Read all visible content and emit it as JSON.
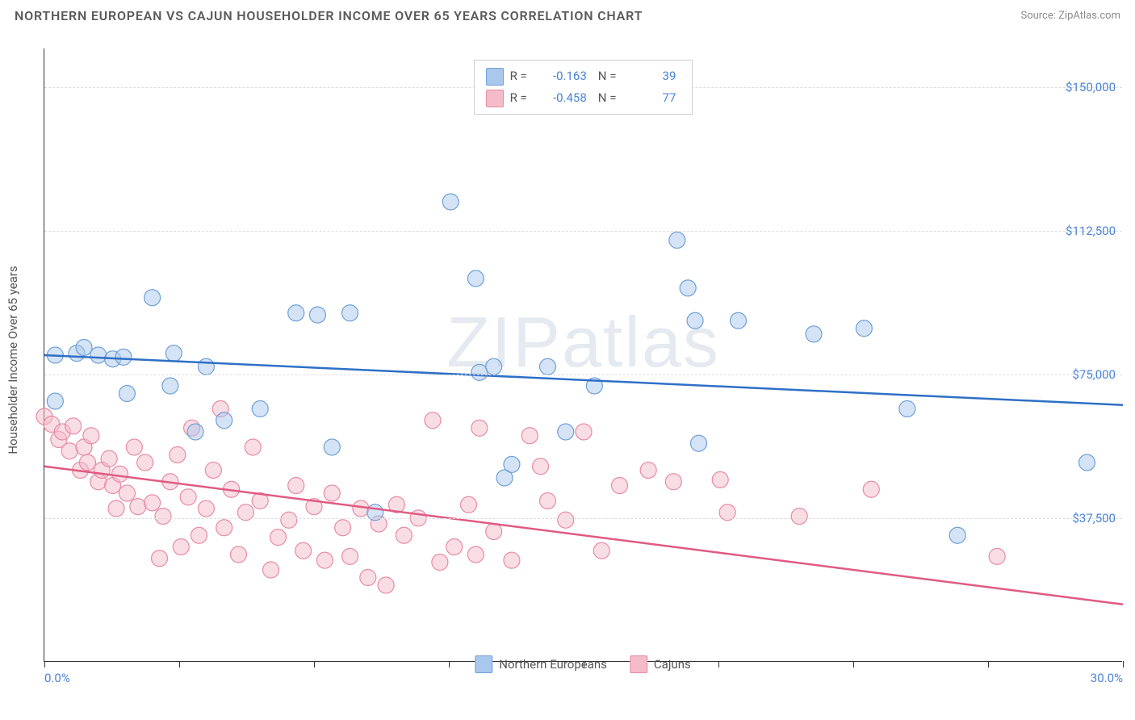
{
  "header": {
    "title": "NORTHERN EUROPEAN VS CAJUN HOUSEHOLDER INCOME OVER 65 YEARS CORRELATION CHART",
    "source": "Source: ZipAtlas.com"
  },
  "watermark": "ZIPatlas",
  "chart": {
    "type": "scatter",
    "y_axis_label": "Householder Income Over 65 years",
    "xlim": [
      0,
      30
    ],
    "ylim": [
      0,
      160000
    ],
    "x_ticks": [
      0,
      3.75,
      7.5,
      11.25,
      15,
      18.75,
      22.5,
      26.25,
      30
    ],
    "x_tick_labels": {
      "0": "0.0%",
      "30": "30.0%"
    },
    "y_ticks": [
      37500,
      75000,
      112500,
      150000
    ],
    "y_tick_labels": [
      "$37,500",
      "$75,000",
      "$112,500",
      "$150,000"
    ],
    "background_color": "#ffffff",
    "grid_color": "#dddddd",
    "axis_color": "#333333",
    "label_color": "#4a84d6",
    "marker_radius": 10,
    "marker_opacity": 0.5,
    "line_width": 2.5,
    "series": [
      {
        "name": "Northern Europeans",
        "color_fill": "#a9c8ec",
        "color_stroke": "#6fa0d9",
        "line_color": "#2f6fc6",
        "R": "-0.163",
        "N": "39",
        "regression": {
          "x1": 0,
          "y1": 80000,
          "x2": 30,
          "y2": 67000
        },
        "points": [
          [
            0.3,
            80000
          ],
          [
            0.3,
            68000
          ],
          [
            0.9,
            80500
          ],
          [
            1.1,
            82000
          ],
          [
            1.5,
            80000
          ],
          [
            1.9,
            79000
          ],
          [
            2.2,
            79500
          ],
          [
            2.3,
            70000
          ],
          [
            3.0,
            95000
          ],
          [
            3.5,
            72000
          ],
          [
            3.6,
            80500
          ],
          [
            4.2,
            60000
          ],
          [
            4.5,
            77000
          ],
          [
            5.0,
            63000
          ],
          [
            6.0,
            66000
          ],
          [
            7.0,
            91000
          ],
          [
            7.6,
            90500
          ],
          [
            8.0,
            56000
          ],
          [
            8.5,
            91000
          ],
          [
            9.2,
            39000
          ],
          [
            11.3,
            120000
          ],
          [
            12.1,
            75500
          ],
          [
            12.0,
            100000
          ],
          [
            12.5,
            77000
          ],
          [
            12.8,
            48000
          ],
          [
            13.0,
            51500
          ],
          [
            14.0,
            77000
          ],
          [
            14.5,
            60000
          ],
          [
            15.3,
            72000
          ],
          [
            17.6,
            110000
          ],
          [
            17.9,
            97500
          ],
          [
            18.1,
            89000
          ],
          [
            18.2,
            57000
          ],
          [
            19.3,
            89000
          ],
          [
            21.4,
            85500
          ],
          [
            22.8,
            87000
          ],
          [
            24.0,
            66000
          ],
          [
            25.4,
            33000
          ],
          [
            29.0,
            52000
          ]
        ]
      },
      {
        "name": "Cajuns",
        "color_fill": "#f4bccb",
        "color_stroke": "#e88ba4",
        "line_color": "#e05a82",
        "R": "-0.458",
        "N": "77",
        "regression": {
          "x1": 0,
          "y1": 51000,
          "x2": 30,
          "y2": 15000
        },
        "points": [
          [
            0.0,
            64000
          ],
          [
            0.2,
            62000
          ],
          [
            0.4,
            58000
          ],
          [
            0.5,
            60000
          ],
          [
            0.7,
            55000
          ],
          [
            0.8,
            61500
          ],
          [
            1.0,
            50000
          ],
          [
            1.1,
            56000
          ],
          [
            1.2,
            52000
          ],
          [
            1.3,
            59000
          ],
          [
            1.5,
            47000
          ],
          [
            1.6,
            50000
          ],
          [
            1.8,
            53000
          ],
          [
            1.9,
            46000
          ],
          [
            2.0,
            40000
          ],
          [
            2.1,
            49000
          ],
          [
            2.3,
            44000
          ],
          [
            2.5,
            56000
          ],
          [
            2.6,
            40500
          ],
          [
            2.8,
            52000
          ],
          [
            3.0,
            41500
          ],
          [
            3.2,
            27000
          ],
          [
            3.3,
            38000
          ],
          [
            3.5,
            47000
          ],
          [
            3.7,
            54000
          ],
          [
            3.8,
            30000
          ],
          [
            4.0,
            43000
          ],
          [
            4.1,
            61000
          ],
          [
            4.3,
            33000
          ],
          [
            4.5,
            40000
          ],
          [
            4.7,
            50000
          ],
          [
            4.9,
            66000
          ],
          [
            5.0,
            35000
          ],
          [
            5.2,
            45000
          ],
          [
            5.4,
            28000
          ],
          [
            5.6,
            39000
          ],
          [
            5.8,
            56000
          ],
          [
            6.0,
            42000
          ],
          [
            6.3,
            24000
          ],
          [
            6.5,
            32500
          ],
          [
            6.8,
            37000
          ],
          [
            7.0,
            46000
          ],
          [
            7.2,
            29000
          ],
          [
            7.5,
            40500
          ],
          [
            7.8,
            26500
          ],
          [
            8.0,
            44000
          ],
          [
            8.3,
            35000
          ],
          [
            8.5,
            27500
          ],
          [
            8.8,
            40000
          ],
          [
            9.0,
            22000
          ],
          [
            9.3,
            36000
          ],
          [
            9.5,
            20000
          ],
          [
            9.8,
            41000
          ],
          [
            10.0,
            33000
          ],
          [
            10.4,
            37500
          ],
          [
            10.8,
            63000
          ],
          [
            11.0,
            26000
          ],
          [
            11.4,
            30000
          ],
          [
            11.8,
            41000
          ],
          [
            12.0,
            28000
          ],
          [
            12.1,
            61000
          ],
          [
            12.5,
            34000
          ],
          [
            13.0,
            26500
          ],
          [
            13.5,
            59000
          ],
          [
            13.8,
            51000
          ],
          [
            14.0,
            42000
          ],
          [
            14.5,
            37000
          ],
          [
            15.0,
            60000
          ],
          [
            15.5,
            29000
          ],
          [
            16.0,
            46000
          ],
          [
            16.8,
            50000
          ],
          [
            17.5,
            47000
          ],
          [
            18.8,
            47500
          ],
          [
            19.0,
            39000
          ],
          [
            21.0,
            38000
          ],
          [
            23.0,
            45000
          ],
          [
            26.5,
            27500
          ]
        ]
      }
    ]
  },
  "legend_bottom": [
    {
      "label": "Northern Europeans",
      "fill": "#a9c8ec",
      "stroke": "#6fa0d9"
    },
    {
      "label": "Cajuns",
      "fill": "#f4bccb",
      "stroke": "#e88ba4"
    }
  ]
}
